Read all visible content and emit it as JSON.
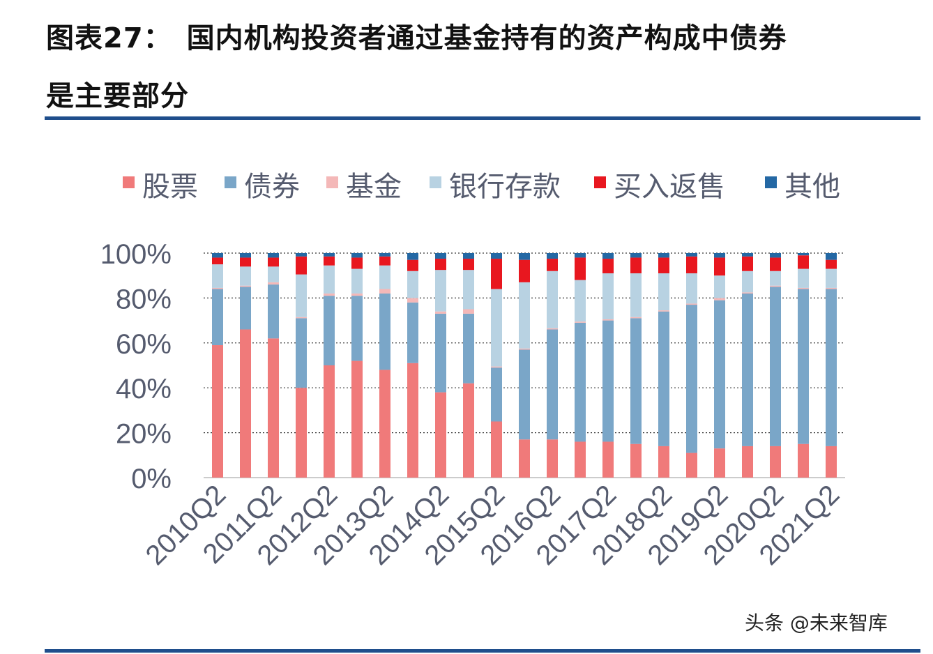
{
  "title_line1": "图表27：　国内机构投资者通过基金持有的资产构成中债券",
  "title_line2": "是主要部分",
  "watermark": "头条 @未来智库",
  "chart_data": {
    "type": "stacked_bar_percent",
    "categories": [
      "2010Q2",
      "2010Q4",
      "2011Q2",
      "2011Q4",
      "2012Q2",
      "2012Q4",
      "2013Q2",
      "2013Q4",
      "2014Q2",
      "2014Q4",
      "2015Q2",
      "2015Q4",
      "2016Q2",
      "2016Q4",
      "2017Q2",
      "2017Q4",
      "2018Q2",
      "2018Q4",
      "2019Q2",
      "2019Q4",
      "2020Q2",
      "2020Q4",
      "2021Q2"
    ],
    "x_tick_labels": [
      "2010Q2",
      "2011Q2",
      "2012Q2",
      "2013Q2",
      "2014Q2",
      "2015Q2",
      "2016Q2",
      "2017Q2",
      "2018Q2",
      "2019Q2",
      "2020Q2",
      "2021Q2"
    ],
    "y_tick_labels": [
      "0%",
      "20%",
      "40%",
      "60%",
      "80%",
      "100%"
    ],
    "ylim": [
      0,
      100
    ],
    "grid": true,
    "legend_position": "top",
    "series": [
      {
        "name": "股票",
        "color": "#f07a7a",
        "values": [
          59,
          66,
          62,
          40,
          50,
          52,
          48,
          51,
          38,
          42,
          25,
          17,
          17,
          16,
          16,
          15,
          14,
          11,
          13,
          14,
          14,
          15,
          14
        ]
      },
      {
        "name": "债券",
        "color": "#7aa6c8",
        "values": [
          25,
          19,
          24,
          31,
          31,
          29,
          34,
          27,
          35,
          31,
          24,
          40,
          49,
          53,
          54,
          56,
          60,
          66,
          66,
          68,
          71,
          69,
          70
        ]
      },
      {
        "name": "基金",
        "color": "#f4b8b8",
        "values": [
          0.5,
          0.5,
          1,
          0.5,
          1,
          1,
          2,
          2,
          1,
          2,
          0.5,
          0.5,
          0.5,
          0.5,
          0.5,
          0.5,
          0.5,
          0.5,
          1,
          0.5,
          0.5,
          0.5,
          0.5
        ]
      },
      {
        "name": "银行存款",
        "color": "#b8d2e2",
        "values": [
          10.5,
          8.5,
          7,
          19,
          12.5,
          11,
          10.5,
          12,
          18.5,
          17.5,
          34.5,
          29.5,
          25.5,
          18.5,
          20.5,
          19.5,
          16.5,
          13.5,
          10,
          9.5,
          6.5,
          8.5,
          8.5
        ]
      },
      {
        "name": "买入返售",
        "color": "#e8171f",
        "values": [
          3,
          4,
          4,
          8,
          4,
          5,
          4,
          5,
          5,
          5,
          13.5,
          10,
          5.5,
          10,
          6.5,
          7,
          7,
          7.5,
          8,
          6.5,
          6,
          6,
          4
        ]
      },
      {
        "name": "其他",
        "color": "#2468a4",
        "values": [
          2,
          2,
          2,
          1.5,
          1.5,
          2,
          1.5,
          3,
          2.5,
          2.5,
          2.5,
          3,
          2.5,
          2,
          2.5,
          2,
          2,
          1.5,
          2,
          1.5,
          2,
          1,
          3
        ]
      }
    ]
  }
}
